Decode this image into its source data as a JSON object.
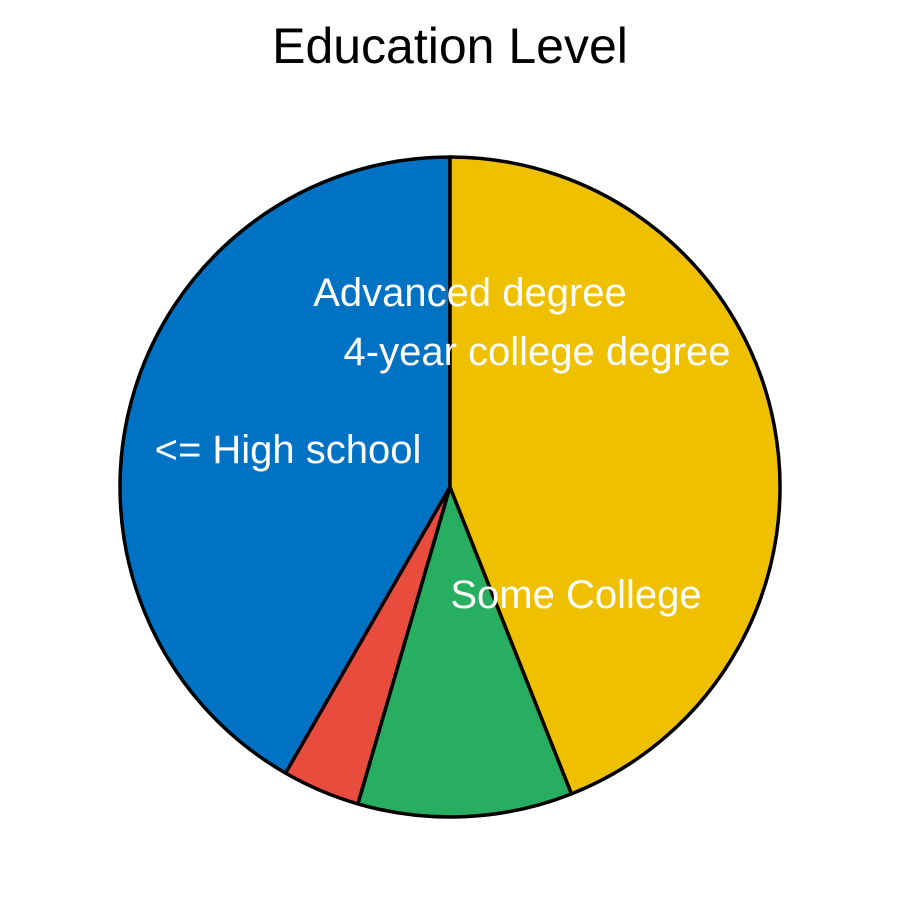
{
  "chart_data": {
    "type": "pie",
    "title": "Education Level",
    "slices": [
      {
        "label": "<= High school",
        "value": 41.7,
        "color": "#0072C4"
      },
      {
        "label": "Advanced degree",
        "value": 3.8,
        "color": "#E84C3D"
      },
      {
        "label": "4-year college degree",
        "value": 10.5,
        "color": "#27AE60"
      },
      {
        "label": "Some College",
        "value": 44.0,
        "color": "#EFC000"
      }
    ],
    "start_angle": "12 o'clock",
    "direction": "counterclockwise",
    "legend": "none"
  }
}
